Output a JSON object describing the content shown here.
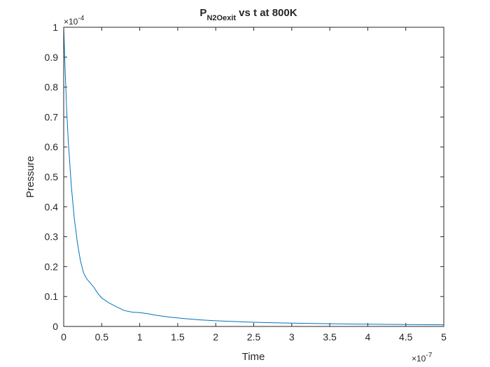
{
  "chart_data": {
    "type": "line",
    "title": {
      "main": "P",
      "subscript": "N2Oexit",
      "rest": " vs t at 800K"
    },
    "xlabel": "Time",
    "ylabel": "Pressure",
    "x_exponent": {
      "base": "×10",
      "power": "-7"
    },
    "y_exponent": {
      "base": "×10",
      "power": "-4"
    },
    "xlim": [
      0,
      5e-07
    ],
    "ylim": [
      0,
      0.0001
    ],
    "x_ticks": [
      0,
      0.5,
      1,
      1.5,
      2,
      2.5,
      3,
      3.5,
      4,
      4.5,
      5
    ],
    "x_tick_labels": [
      "0",
      "0.5",
      "1",
      "1.5",
      "2",
      "2.5",
      "3",
      "3.5",
      "4",
      "4.5",
      "5"
    ],
    "y_ticks": [
      0,
      0.1,
      0.2,
      0.3,
      0.4,
      0.5,
      0.6,
      0.7,
      0.8,
      0.9,
      1
    ],
    "y_tick_labels": [
      "0",
      "0.1",
      "0.2",
      "0.3",
      "0.4",
      "0.5",
      "0.6",
      "0.7",
      "0.8",
      "0.9",
      "1"
    ],
    "grid": false,
    "line_color": "#0072BD",
    "series": [
      {
        "x": [
          0,
          2e-09,
          4e-09,
          6e-09,
          1e-08,
          1.4e-08,
          1.8e-08,
          2.2e-08,
          2.6e-08,
          3e-08,
          3.5e-08,
          4e-08,
          4.5e-08,
          5e-08,
          6e-08,
          7e-08,
          8e-08,
          9e-08,
          1e-07,
          1.1e-07,
          1.2e-07,
          1.4e-07,
          1.6e-07,
          1.8e-07,
          2e-07,
          2.5e-07,
          3e-07,
          3.5e-07,
          4e-07,
          4.5e-07,
          5e-07
        ],
        "y": [
          0.0001,
          8.5e-05,
          7.2e-05,
          6.2e-05,
          4.7e-05,
          3.6e-05,
          2.8e-05,
          2.2e-05,
          1.8e-05,
          1.6e-05,
          1.45e-05,
          1.3e-05,
          1.1e-05,
          9.5e-06,
          7.8e-06,
          6.5e-06,
          5.3e-06,
          4.8e-06,
          4.6e-06,
          4.3e-06,
          3.8e-06,
          3.1e-06,
          2.6e-06,
          2.2e-06,
          1.9e-06,
          1.4e-06,
          1.1e-06,
          9e-07,
          7.5e-07,
          6.5e-07,
          5.5e-07
        ]
      }
    ]
  }
}
